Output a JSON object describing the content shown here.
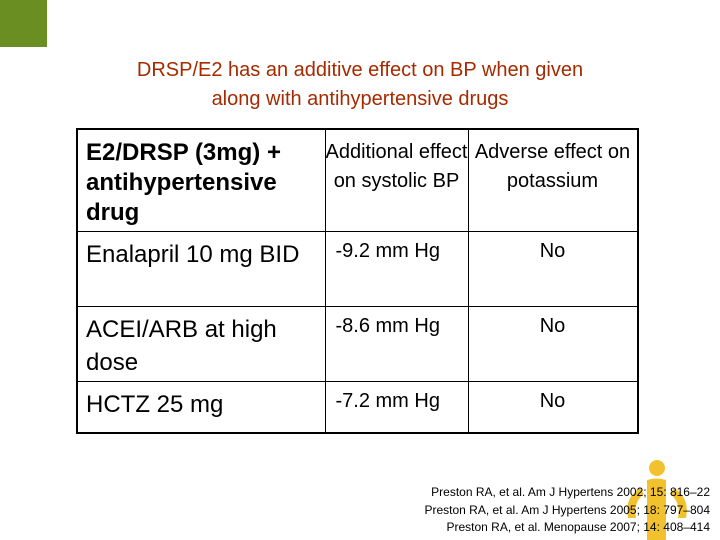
{
  "title": {
    "line1": "DRSP/E2 has an additive effect on BP when given",
    "line2": "along with antihypertensive drugs"
  },
  "table": {
    "headers": {
      "col1": "E2/DRSP (3mg) + antihypertensive drug",
      "col2": "Additional effect on systolic BP",
      "col3": "Adverse effect on potassium"
    },
    "rows": [
      {
        "drug": "Enalapril 10 mg BID",
        "bp_effect": "-9.2 mm Hg",
        "potassium": "No"
      },
      {
        "drug": "ACEI/ARB at high dose",
        "bp_effect": "-8.6 mm Hg",
        "potassium": "No"
      },
      {
        "drug": "HCTZ 25 mg",
        "bp_effect": "-7.2 mm Hg",
        "potassium": "No"
      }
    ]
  },
  "references": [
    "Preston RA, et al. Am J Hypertens 2002; 15: 816–22",
    "Preston RA, et al. Am J Hypertens 2005; 18: 797–804",
    "Preston RA, et al. Menopause 2007; 14: 408–414"
  ],
  "colors": {
    "title": "#a52a00",
    "corner": "#6b8e23",
    "logo": "#f2c22e"
  },
  "icons": {
    "logo": "figure-logo-icon"
  }
}
